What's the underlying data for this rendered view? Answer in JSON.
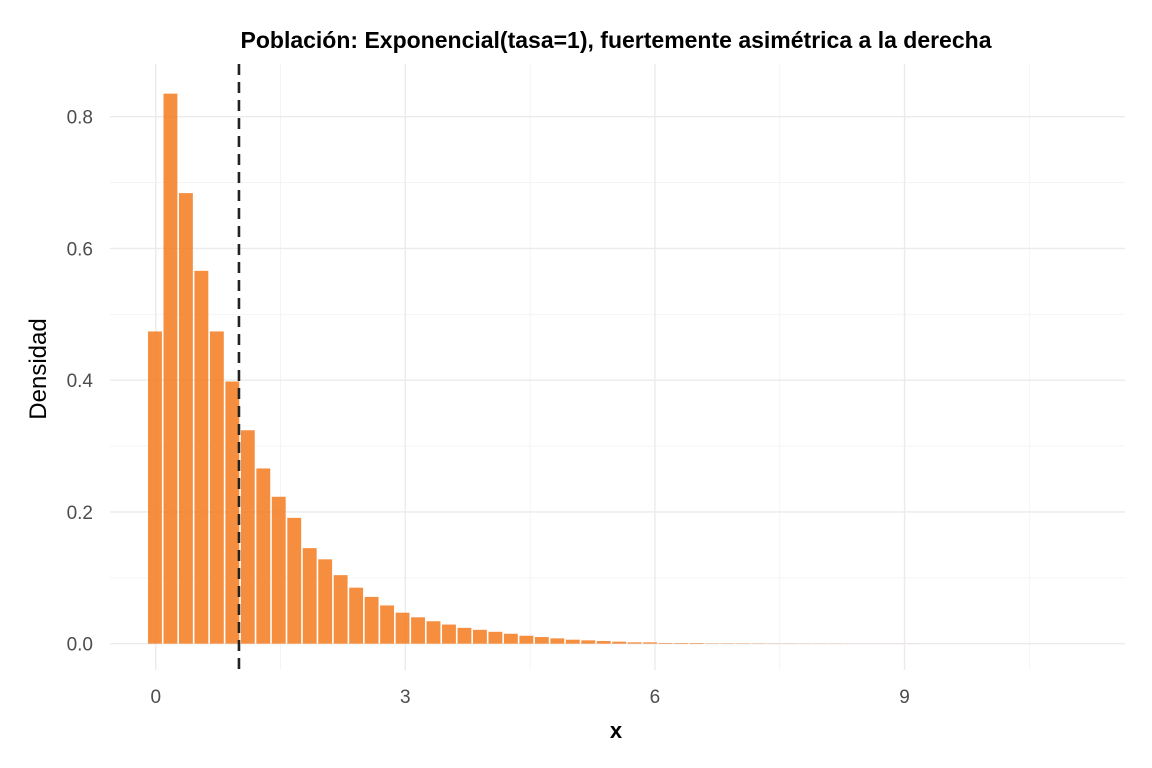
{
  "chart_data": {
    "type": "bar",
    "title": "Población: Exponencial(tasa=1), fuertemente asimétrica a la derecha",
    "xlabel": "x",
    "ylabel": "Densidad",
    "xlim": [
      -0.55,
      11.65
    ],
    "ylim": [
      -0.04,
      0.88
    ],
    "x_ticks": [
      0,
      3,
      6,
      9
    ],
    "x_tick_labels": [
      "0",
      "3",
      "6",
      "9"
    ],
    "y_ticks": [
      0.0,
      0.2,
      0.4,
      0.6,
      0.8
    ],
    "y_tick_labels": [
      "0.0",
      "0.2",
      "0.4",
      "0.6",
      "0.8"
    ],
    "grid": true,
    "bin_width": 0.186,
    "bin_start": -0.093,
    "values": [
      0.474,
      0.835,
      0.684,
      0.566,
      0.474,
      0.398,
      0.324,
      0.266,
      0.223,
      0.191,
      0.145,
      0.128,
      0.104,
      0.085,
      0.071,
      0.058,
      0.047,
      0.04,
      0.034,
      0.029,
      0.024,
      0.021,
      0.018,
      0.015,
      0.012,
      0.01,
      0.008,
      0.006,
      0.005,
      0.004,
      0.003,
      0.002,
      0.002,
      0.001,
      0.001,
      0.001,
      0.0005,
      0.0005,
      0.0005,
      0.0004,
      0.0003,
      0.0003,
      0.0002,
      0.0002,
      0.0002,
      0.0001,
      0.0001,
      0.0001,
      0.0001,
      0.0001
    ],
    "bar_color": "#F57A1E",
    "bar_opacity": 0.85,
    "reference_line": {
      "x": 1.0,
      "style": "dashed",
      "color": "#222222"
    }
  }
}
